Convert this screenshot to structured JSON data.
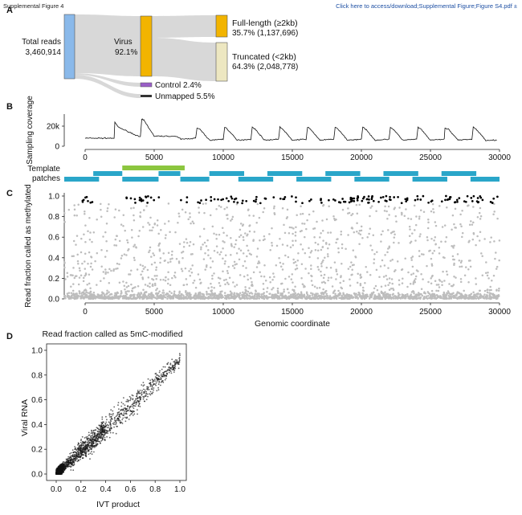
{
  "header": {
    "left": "Supplemental Figure 4",
    "right": "Click here to access/download;Supplemental Figure;Figure S4.pdf ±"
  },
  "panels": {
    "a": "A",
    "b": "B",
    "c": "C",
    "d": "D"
  },
  "sankey": {
    "total_label": "Total reads",
    "total_value": "3,460,914",
    "virus_label": "Virus",
    "virus_value": "92.1%",
    "full_label": "Full-length (≥2kb)",
    "full_value": "35.7% (1,137,696)",
    "trunc_label": "Truncated (<2kb)",
    "trunc_value": "64.3% (2,048,778)",
    "control_label": "Control 2.4%",
    "unmapped_label": "Unmapped 5.5%",
    "colors": {
      "total": "#8ab9ea",
      "virus": "#f2b400",
      "full": "#f2b400",
      "trunc": "#ede7c1",
      "control": "#9a5fc7",
      "unmapped": "#333333",
      "flow": "#d8d8d8"
    }
  },
  "chart_data": [
    {
      "type": "line",
      "panel": "B",
      "ylabel": "Sampling coverage",
      "ytick_labels": [
        "0",
        "20k"
      ],
      "yticks": [
        0,
        20000
      ],
      "xticks": [
        0,
        5000,
        10000,
        15000,
        20000,
        25000,
        30000
      ],
      "xtick_labels": [
        "0",
        "5000",
        "10000",
        "15000",
        "20000",
        "25000",
        "30000"
      ],
      "xlim": [
        0,
        30000
      ],
      "ylim": [
        0,
        32000
      ],
      "baseline": 8000,
      "series": [
        {
          "x": [
            0,
            2100,
            2150,
            2400,
            4000,
            4100,
            4250,
            5000,
            6000,
            6500,
            7000,
            8000,
            8100,
            8300,
            9000,
            10000,
            10100,
            10300,
            11000,
            12000,
            12100,
            12300,
            13000,
            14000,
            14100,
            14300,
            15000,
            16000,
            16100,
            16300,
            17000,
            18000,
            18100,
            18300,
            19000,
            20000,
            20100,
            20300,
            21000,
            22000,
            22100,
            22300,
            23000,
            24000,
            24100,
            24300,
            25000,
            26000,
            26050,
            26300,
            27000,
            28000,
            28100,
            28300,
            29000,
            29800
          ],
          "y": [
            8000,
            8000,
            24000,
            19000,
            9000,
            27000,
            26000,
            10000,
            10000,
            10000,
            7000,
            8000,
            18000,
            17000,
            6000,
            7000,
            19000,
            17000,
            6000,
            7000,
            19000,
            17000,
            6000,
            7000,
            19000,
            17000,
            6000,
            7000,
            19000,
            17000,
            6000,
            7000,
            19000,
            17000,
            6000,
            7000,
            19000,
            17000,
            6000,
            7000,
            19000,
            17000,
            6000,
            7000,
            19000,
            17000,
            6000,
            7000,
            18000,
            17000,
            6000,
            7000,
            19000,
            17000,
            6000,
            6000
          ]
        }
      ]
    },
    {
      "type": "scatter",
      "panel": "C",
      "ylabel": "Read fraction called as methylated",
      "xlabel": "Genomic coordinate",
      "xlim": [
        0,
        30000
      ],
      "ylim": [
        0,
        1
      ],
      "xticks": [
        0,
        5000,
        10000,
        15000,
        20000,
        25000,
        30000
      ],
      "xtick_labels": [
        "0",
        "5000",
        "10000",
        "15000",
        "20000",
        "25000",
        "30000"
      ],
      "yticks": [
        0,
        0.2,
        0.4,
        0.6,
        0.8,
        1
      ],
      "ytick_labels": [
        "0.0",
        "0.2",
        "0.4",
        "0.6",
        "0.8",
        "1.0"
      ],
      "template_label": "Template patches",
      "patches": [
        {
          "start": 0,
          "end": 2400,
          "row": 3
        },
        {
          "start": 2000,
          "end": 4000,
          "row": 2
        },
        {
          "start": 4000,
          "end": 8300,
          "row": 1
        },
        {
          "start": 4000,
          "end": 6500,
          "row": 3
        },
        {
          "start": 6500,
          "end": 8000,
          "row": 2
        },
        {
          "start": 8000,
          "end": 10000,
          "row": 3
        },
        {
          "start": 10000,
          "end": 12400,
          "row": 2
        },
        {
          "start": 12000,
          "end": 14400,
          "row": 3
        },
        {
          "start": 14000,
          "end": 16400,
          "row": 2
        },
        {
          "start": 16000,
          "end": 18400,
          "row": 3
        },
        {
          "start": 18000,
          "end": 20400,
          "row": 2
        },
        {
          "start": 20000,
          "end": 22400,
          "row": 3
        },
        {
          "start": 22000,
          "end": 24400,
          "row": 2
        },
        {
          "start": 24000,
          "end": 26400,
          "row": 3
        },
        {
          "start": 26000,
          "end": 28400,
          "row": 2
        },
        {
          "start": 28000,
          "end": 30000,
          "row": 3
        }
      ],
      "point_count_gray": 2600,
      "point_count_black": 160,
      "colors": {
        "gray": "#bdbdbd",
        "black": "#000000",
        "patch": "#2aa6c9",
        "patch_highlight": "#8cc63f"
      }
    },
    {
      "type": "scatter",
      "panel": "D",
      "title": "Read fraction called as 5mC-modified",
      "xlabel": "IVT product",
      "ylabel": "Viral RNA",
      "xlim": [
        0,
        1
      ],
      "ylim": [
        0,
        1
      ],
      "xticks": [
        0,
        0.2,
        0.4,
        0.6,
        0.8,
        1
      ],
      "xtick_labels": [
        "0.0",
        "0.2",
        "0.4",
        "0.6",
        "0.8",
        "1.0"
      ],
      "yticks": [
        0,
        0.2,
        0.4,
        0.6,
        0.8,
        1
      ],
      "ytick_labels": [
        "0.0",
        "0.2",
        "0.4",
        "0.6",
        "0.8",
        "1.0"
      ],
      "point_count": 2200
    }
  ]
}
